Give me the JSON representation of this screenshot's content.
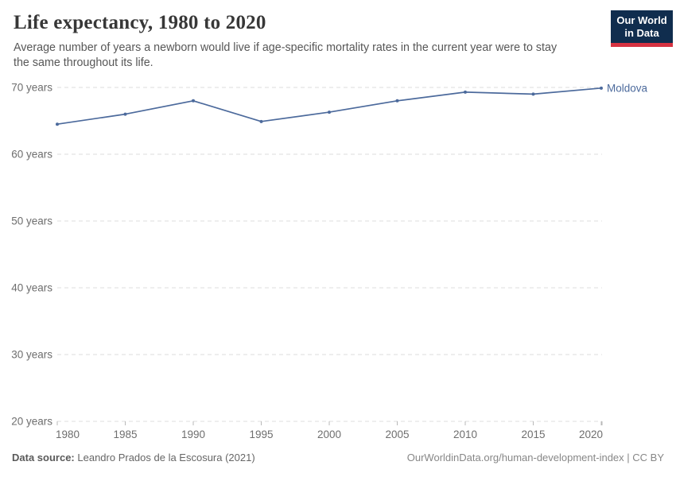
{
  "header": {
    "title": "Life expectancy, 1980 to 2020",
    "subtitle_line1": "Average number of years a newborn would live if age-specific mortality rates in the current year were to stay",
    "subtitle_line2": "the same throughout its life.",
    "logo": {
      "line1": "Our World",
      "line2": "in Data"
    }
  },
  "footer": {
    "source_label": "Data source:",
    "source_text": "Leandro Prados de la Escosura (2021)",
    "credit": "OurWorldinData.org/human-development-index | CC BY"
  },
  "colors": {
    "series": "#4C6A9C",
    "grid": "#dedede",
    "tick": "#b8b8b8",
    "axis_text": "#6e6e6e",
    "logo_bg": "#102d4e",
    "logo_stripe": "#d63241"
  },
  "chart_data": {
    "type": "line",
    "title": "Life expectancy, 1980 to 2020",
    "xlabel": "",
    "ylabel": "",
    "x": [
      1980,
      1985,
      1990,
      1995,
      2000,
      2005,
      2010,
      2015,
      2020
    ],
    "series": [
      {
        "name": "Moldova",
        "color": "#4C6A9C",
        "values": [
          64.5,
          66.0,
          68.0,
          64.9,
          66.3,
          68.0,
          69.3,
          69.0,
          69.9
        ]
      }
    ],
    "y_ticks": [
      20,
      30,
      40,
      50,
      60,
      70
    ],
    "y_tick_label_suffix": " years",
    "ylim": [
      20,
      71
    ],
    "xlim": [
      1980,
      2020
    ],
    "grid": "horizontal-dashed",
    "legend_position": "end-of-line"
  }
}
